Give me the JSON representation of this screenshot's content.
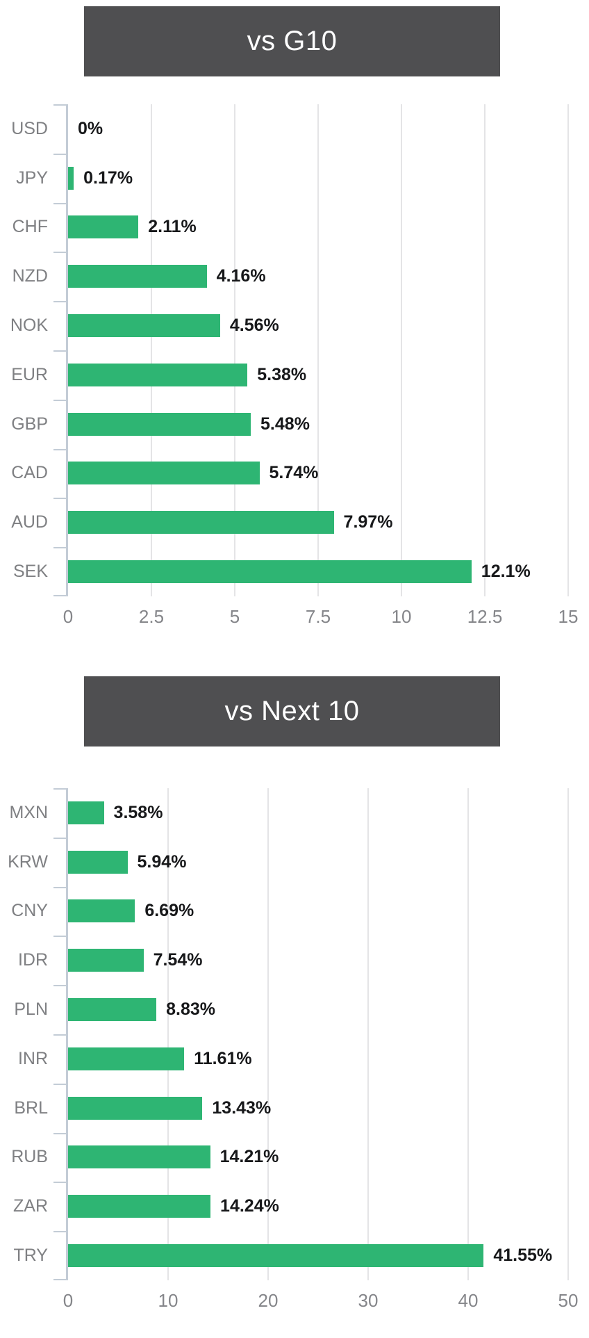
{
  "colors": {
    "background": "#ffffff",
    "bar": "#2eb573",
    "banner_bg": "#4f4f51",
    "banner_text": "#ffffff",
    "category_label": "#7f8083",
    "value_label": "#17181a",
    "axis_line": "#c3ccd6",
    "gridline": "#e4e4e6",
    "axis_tick_label": "#85868a"
  },
  "chart_data": [
    {
      "type": "bar",
      "orientation": "horizontal",
      "title": "vs G10",
      "categories": [
        "USD",
        "JPY",
        "CHF",
        "NZD",
        "NOK",
        "EUR",
        "GBP",
        "CAD",
        "AUD",
        "SEK"
      ],
      "values": [
        0,
        0.17,
        2.11,
        4.16,
        4.56,
        5.38,
        5.48,
        5.74,
        7.97,
        12.1
      ],
      "value_labels": [
        "0%",
        "0.17%",
        "2.11%",
        "4.16%",
        "4.56%",
        "5.38%",
        "5.48%",
        "5.74%",
        "7.97%",
        "12.1%"
      ],
      "xlim": [
        0,
        15
      ],
      "xtick_values": [
        0,
        2.5,
        5,
        7.5,
        10,
        12.5,
        15
      ],
      "xtick_labels": [
        "0",
        "2.5",
        "5",
        "7.5",
        "10",
        "12.5",
        "15"
      ],
      "grid": true,
      "legend": false
    },
    {
      "type": "bar",
      "orientation": "horizontal",
      "title": "vs Next 10",
      "categories": [
        "MXN",
        "KRW",
        "CNY",
        "IDR",
        "PLN",
        "INR",
        "BRL",
        "RUB",
        "ZAR",
        "TRY"
      ],
      "values": [
        3.58,
        5.94,
        6.69,
        7.54,
        8.83,
        11.61,
        13.43,
        14.21,
        14.24,
        41.55
      ],
      "value_labels": [
        "3.58%",
        "5.94%",
        "6.69%",
        "7.54%",
        "8.83%",
        "11.61%",
        "13.43%",
        "14.21%",
        "14.24%",
        "41.55%"
      ],
      "xlim": [
        0,
        50
      ],
      "xtick_values": [
        0,
        10,
        20,
        30,
        40,
        50
      ],
      "xtick_labels": [
        "0",
        "10",
        "20",
        "30",
        "40",
        "50"
      ],
      "grid": true,
      "legend": false
    }
  ]
}
